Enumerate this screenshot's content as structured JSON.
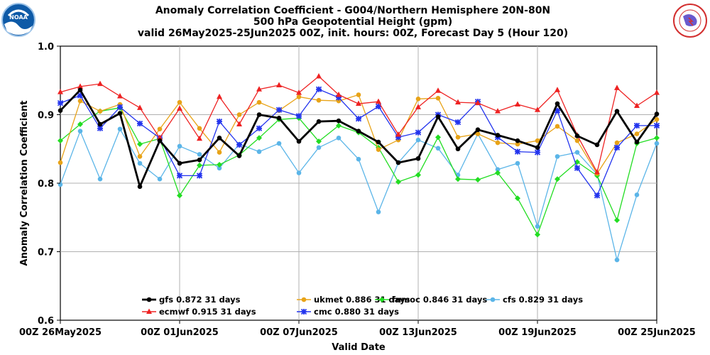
{
  "chart_data": {
    "type": "line",
    "title_lines": [
      "Anomaly Correlation Coefficient - G004/Northern Hemisphere 20N-80N",
      "500 hPa Geopotential Height (gpm)",
      "valid 26May2025-25Jun2025 00Z, init. hours: 00Z, Forecast Day 5 (Hour 120)"
    ],
    "xlabel": "Valid Date",
    "ylabel": "Anomaly Correlation Coefficient",
    "ylim": [
      0.6,
      1.0
    ],
    "yticks": [
      "0.6",
      "0.7",
      "0.8",
      "0.9",
      "1.0"
    ],
    "x_dates": [
      "26May",
      "27May",
      "28May",
      "29May",
      "30May",
      "31May",
      "01Jun",
      "02Jun",
      "03Jun",
      "04Jun",
      "05Jun",
      "06Jun",
      "07Jun",
      "08Jun",
      "09Jun",
      "10Jun",
      "11Jun",
      "12Jun",
      "13Jun",
      "14Jun",
      "15Jun",
      "16Jun",
      "17Jun",
      "18Jun",
      "19Jun",
      "20Jun",
      "21Jun",
      "22Jun",
      "23Jun",
      "24Jun",
      "25Jun"
    ],
    "xtick_labels": [
      "00Z 26May2025",
      "00Z 01Jun2025",
      "00Z 07Jun2025",
      "00Z 13Jun2025",
      "00Z 19Jun2025",
      "00Z 25Jun2025"
    ],
    "xtick_positions": [
      0,
      6,
      12,
      18,
      24,
      30
    ],
    "grid": true,
    "legend_placement": "bottom-center",
    "series": [
      {
        "name": "gfs",
        "legend": "gfs 0.872 31 days",
        "color": "#000000",
        "marker": "circle",
        "bold": true,
        "values": [
          0.906,
          0.936,
          0.886,
          0.902,
          0.795,
          0.862,
          0.829,
          0.834,
          0.866,
          0.84,
          0.9,
          0.895,
          0.861,
          0.89,
          0.891,
          0.876,
          0.86,
          0.83,
          0.836,
          0.897,
          0.85,
          0.878,
          0.87,
          0.862,
          0.852,
          0.916,
          0.869,
          0.856,
          0.905,
          0.86,
          0.901
        ]
      },
      {
        "name": "ukmet",
        "legend": "ukmet 0.886 31 days",
        "color": "#E8A317",
        "marker": "circle",
        "values": [
          0.83,
          0.92,
          0.905,
          0.915,
          0.839,
          0.879,
          0.918,
          0.88,
          0.845,
          0.9,
          0.918,
          0.906,
          0.926,
          0.921,
          0.92,
          0.929,
          0.849,
          0.863,
          0.923,
          0.924,
          0.867,
          0.872,
          0.859,
          0.857,
          0.862,
          0.883,
          0.862,
          0.814,
          0.859,
          0.872,
          0.893
        ]
      },
      {
        "name": "fnmoc",
        "legend": "fnmoc 0.846 31 days",
        "color": "#22DD22",
        "marker": "diamond",
        "values": [
          0.862,
          0.886,
          0.905,
          0.91,
          0.857,
          0.865,
          0.782,
          0.826,
          0.827,
          0.841,
          0.866,
          0.893,
          0.895,
          0.861,
          0.884,
          0.874,
          0.852,
          0.802,
          0.812,
          0.867,
          0.806,
          0.805,
          0.815,
          0.778,
          0.725,
          0.806,
          0.831,
          0.811,
          0.746,
          0.858,
          0.866
        ]
      },
      {
        "name": "cfs",
        "legend": "cfs 0.829 31 days",
        "color": "#5BB5E8",
        "marker": "circle",
        "values": [
          0.798,
          0.876,
          0.806,
          0.879,
          0.829,
          0.806,
          0.854,
          0.842,
          0.822,
          0.857,
          0.846,
          0.858,
          0.815,
          0.852,
          0.866,
          0.835,
          0.758,
          0.83,
          0.863,
          0.851,
          0.812,
          0.872,
          0.82,
          0.829,
          0.737,
          0.839,
          0.845,
          0.813,
          0.688,
          0.783,
          0.858
        ]
      },
      {
        "name": "ecmwf",
        "legend": "ecmwf 0.915 31 days",
        "color": "#EE2222",
        "marker": "triangle",
        "values": [
          0.933,
          0.941,
          0.945,
          0.927,
          0.91,
          0.866,
          0.909,
          0.865,
          0.926,
          0.886,
          0.937,
          0.943,
          0.932,
          0.956,
          0.929,
          0.916,
          0.919,
          0.871,
          0.911,
          0.935,
          0.918,
          0.917,
          0.905,
          0.915,
          0.907,
          0.936,
          0.87,
          0.816,
          0.939,
          0.913,
          0.932
        ]
      },
      {
        "name": "cmc",
        "legend": "cmc 0.880 31 days",
        "color": "#2233EE",
        "marker": "x",
        "values": [
          0.917,
          0.928,
          0.88,
          0.911,
          0.887,
          0.866,
          0.811,
          0.811,
          0.89,
          0.856,
          0.88,
          0.907,
          0.898,
          0.937,
          0.925,
          0.894,
          0.912,
          0.867,
          0.874,
          0.9,
          0.889,
          0.919,
          0.867,
          0.846,
          0.845,
          0.906,
          0.822,
          0.782,
          0.852,
          0.884,
          0.884
        ]
      }
    ],
    "legend_rows": [
      [
        "gfs",
        "ukmet",
        "fnmoc",
        "cfs"
      ],
      [
        "ecmwf",
        "cmc"
      ]
    ]
  },
  "logos": {
    "left": {
      "name": "NOAA",
      "text": "NOAA",
      "color": "#1565C0"
    },
    "right": {
      "name": "National Weather Service",
      "text": "NATIONAL WEATHER SERVICE",
      "color": "#D32F2F"
    }
  }
}
